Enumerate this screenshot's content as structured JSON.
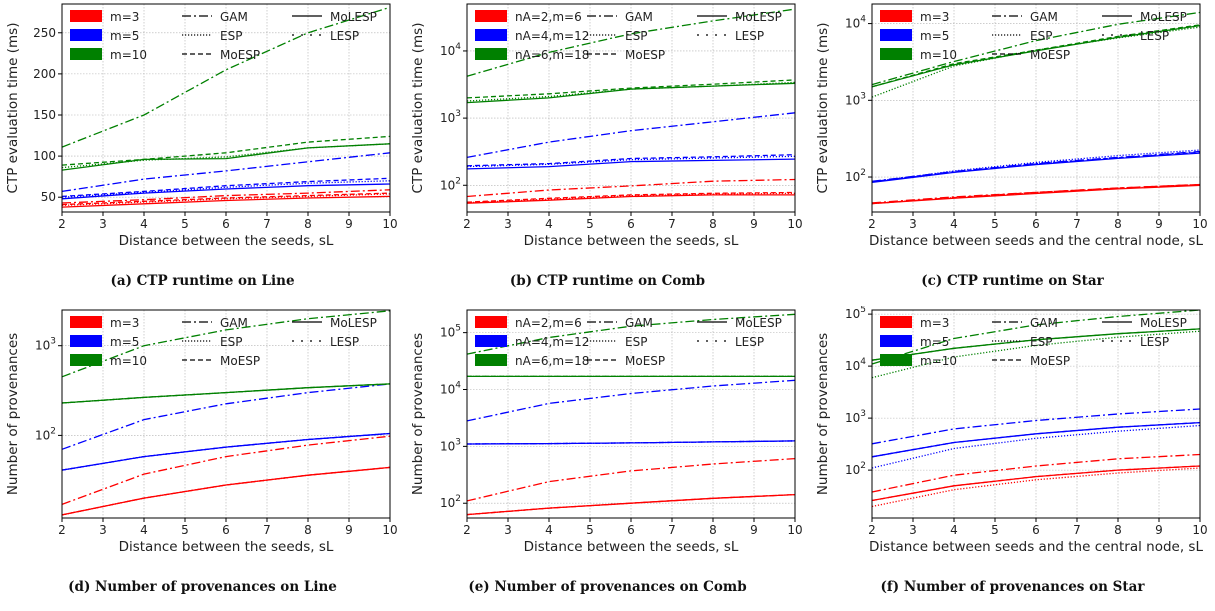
{
  "colors": {
    "red": "#ff0000",
    "blue": "#0000ff",
    "green": "#008000"
  },
  "style_names": [
    "GAM",
    "ESP",
    "MoESP",
    "MoLESP",
    "LESP"
  ],
  "chart_data": [
    {
      "id": "a",
      "type": "line",
      "caption": "(a) CTP runtime on Line",
      "xlabel": "Distance between the seeds, sL",
      "ylabel": "CTP evaluation time (ms)",
      "xscale": "linear",
      "yscale": "linear",
      "xlim": [
        2,
        10
      ],
      "ylim": [
        32,
        285
      ],
      "xticks": [
        2,
        3,
        4,
        5,
        6,
        7,
        8,
        9,
        10
      ],
      "yticks": [
        50,
        100,
        150,
        200,
        250
      ],
      "grid": true,
      "legend_position": "top-left",
      "legend_labels": [
        "m=3",
        "m=5",
        "m=10"
      ],
      "x": [
        2,
        4,
        6,
        8,
        10
      ],
      "series": [
        {
          "group": 0,
          "style": "GAM",
          "values": [
            43,
            47,
            52,
            55,
            59
          ]
        },
        {
          "group": 0,
          "style": "ESP",
          "values": [
            40,
            44,
            48,
            51,
            54
          ]
        },
        {
          "group": 0,
          "style": "MoESP",
          "values": [
            41,
            45,
            49,
            52,
            55
          ]
        },
        {
          "group": 0,
          "style": "MoLESP",
          "values": [
            38,
            42,
            46,
            49,
            51
          ]
        },
        {
          "group": 1,
          "style": "GAM",
          "values": [
            57,
            72,
            82,
            93,
            104
          ]
        },
        {
          "group": 1,
          "style": "ESP",
          "values": [
            50,
            56,
            62,
            67,
            70
          ]
        },
        {
          "group": 1,
          "style": "MoESP",
          "values": [
            51,
            57,
            64,
            69,
            73
          ]
        },
        {
          "group": 1,
          "style": "MoLESP",
          "values": [
            48,
            55,
            60,
            64,
            66
          ]
        },
        {
          "group": 2,
          "style": "GAM",
          "values": [
            111,
            150,
            205,
            250,
            281
          ]
        },
        {
          "group": 2,
          "style": "ESP",
          "values": [
            86,
            95,
            99,
            110,
            115
          ]
        },
        {
          "group": 2,
          "style": "MoESP",
          "values": [
            89,
            96,
            104,
            117,
            124
          ]
        },
        {
          "group": 2,
          "style": "MoLESP",
          "values": [
            83,
            96,
            97,
            110,
            115
          ]
        }
      ]
    },
    {
      "id": "b",
      "type": "line",
      "caption": "(b) CTP runtime on Comb",
      "xlabel": "Distance between the seeds, sL",
      "ylabel": "CTP evaluation time (ms)",
      "xscale": "linear",
      "yscale": "log",
      "xlim": [
        2,
        10
      ],
      "ylim": [
        40,
        50000
      ],
      "xticks": [
        2,
        3,
        4,
        5,
        6,
        7,
        8,
        9,
        10
      ],
      "yticks": [
        100,
        1000,
        10000
      ],
      "grid": true,
      "legend_position": "top",
      "legend_labels": [
        "nA=2,m=6",
        "nA=4,m=12",
        "nA=6,m=18"
      ],
      "x": [
        2,
        4,
        6,
        8,
        10
      ],
      "series": [
        {
          "group": 0,
          "style": "GAM",
          "values": [
            68,
            85,
            98,
            115,
            122
          ]
        },
        {
          "group": 0,
          "style": "ESP",
          "values": [
            55,
            62,
            70,
            74,
            76
          ]
        },
        {
          "group": 0,
          "style": "MoESP",
          "values": [
            56,
            64,
            72,
            76,
            78
          ]
        },
        {
          "group": 0,
          "style": "MoLESP",
          "values": [
            54,
            60,
            68,
            72,
            72
          ]
        },
        {
          "group": 1,
          "style": "GAM",
          "values": [
            260,
            440,
            650,
            880,
            1200
          ]
        },
        {
          "group": 1,
          "style": "ESP",
          "values": [
            190,
            205,
            240,
            255,
            270
          ]
        },
        {
          "group": 1,
          "style": "MoESP",
          "values": [
            195,
            210,
            250,
            265,
            285
          ]
        },
        {
          "group": 1,
          "style": "MoLESP",
          "values": [
            175,
            190,
            225,
            235,
            245
          ]
        },
        {
          "group": 2,
          "style": "GAM",
          "values": [
            4200,
            9500,
            18000,
            28000,
            42000
          ]
        },
        {
          "group": 2,
          "style": "ESP",
          "values": [
            1800,
            2100,
            2700,
            3000,
            3400
          ]
        },
        {
          "group": 2,
          "style": "MoESP",
          "values": [
            2000,
            2300,
            2800,
            3200,
            3700
          ]
        },
        {
          "group": 2,
          "style": "MoLESP",
          "values": [
            1700,
            2000,
            2700,
            3000,
            3300
          ]
        }
      ]
    },
    {
      "id": "c",
      "type": "line",
      "caption": "(c) CTP runtime on Star",
      "xlabel": "Distance between seeds and the central node, sL",
      "ylabel": "CTP evaluation time (ms)",
      "xscale": "linear",
      "yscale": "log",
      "xlim": [
        2,
        10
      ],
      "ylim": [
        35,
        18000
      ],
      "xticks": [
        2,
        3,
        4,
        5,
        6,
        7,
        8,
        9,
        10
      ],
      "yticks": [
        100,
        1000,
        10000
      ],
      "grid": true,
      "legend_position": "top",
      "legend_labels": [
        "m=3",
        "m=5",
        "m=10"
      ],
      "x": [
        2,
        4,
        6,
        8,
        10
      ],
      "series": [
        {
          "group": 0,
          "style": "GAM",
          "values": [
            46,
            55,
            63,
            72,
            80
          ]
        },
        {
          "group": 0,
          "style": "ESP",
          "values": [
            45,
            54,
            62,
            71,
            79
          ]
        },
        {
          "group": 0,
          "style": "MoESP",
          "values": [
            45,
            54,
            63,
            72,
            80
          ]
        },
        {
          "group": 0,
          "style": "MoLESP",
          "values": [
            45,
            53,
            61,
            70,
            78
          ]
        },
        {
          "group": 1,
          "style": "GAM",
          "values": [
            88,
            118,
            150,
            180,
            215
          ]
        },
        {
          "group": 1,
          "style": "ESP",
          "values": [
            86,
            120,
            155,
            190,
            225
          ]
        },
        {
          "group": 1,
          "style": "MoESP",
          "values": [
            87,
            116,
            148,
            178,
            210
          ]
        },
        {
          "group": 1,
          "style": "MoLESP",
          "values": [
            85,
            115,
            145,
            175,
            205
          ]
        },
        {
          "group": 2,
          "style": "GAM",
          "values": [
            1600,
            3200,
            6000,
            9800,
            14000
          ]
        },
        {
          "group": 2,
          "style": "ESP",
          "values": [
            1100,
            2800,
            4500,
            6500,
            9000
          ]
        },
        {
          "group": 2,
          "style": "MoESP",
          "values": [
            1500,
            3000,
            4500,
            6800,
            9600
          ]
        },
        {
          "group": 2,
          "style": "MoLESP",
          "values": [
            1500,
            2900,
            4400,
            6600,
            9400
          ]
        }
      ]
    },
    {
      "id": "d",
      "type": "line",
      "caption": "(d) Number of provenances on Line",
      "xlabel": "Distance between the seeds, sL",
      "ylabel": "Number of provenances",
      "xscale": "linear",
      "yscale": "log",
      "xlim": [
        2,
        10
      ],
      "ylim": [
        12,
        2500
      ],
      "xticks": [
        2,
        3,
        4,
        5,
        6,
        7,
        8,
        9,
        10
      ],
      "yticks": [
        100,
        1000
      ],
      "grid": true,
      "legend_position": "top-left",
      "legend_labels": [
        "m=3",
        "m=5",
        "m=10"
      ],
      "x": [
        2,
        4,
        6,
        8,
        10
      ],
      "series": [
        {
          "group": 0,
          "style": "GAM",
          "values": [
            17,
            37,
            58,
            78,
            98
          ]
        },
        {
          "group": 0,
          "style": "ESP",
          "values": [
            13,
            20,
            28,
            36,
            44
          ]
        },
        {
          "group": 0,
          "style": "MoESP",
          "values": [
            13,
            20,
            28,
            36,
            44
          ]
        },
        {
          "group": 0,
          "style": "MoLESP",
          "values": [
            13,
            20,
            28,
            36,
            44
          ]
        },
        {
          "group": 1,
          "style": "GAM",
          "values": [
            70,
            150,
            225,
            300,
            375
          ]
        },
        {
          "group": 1,
          "style": "ESP",
          "values": [
            41,
            58,
            74,
            90,
            105
          ]
        },
        {
          "group": 1,
          "style": "MoESP",
          "values": [
            41,
            58,
            74,
            90,
            105
          ]
        },
        {
          "group": 1,
          "style": "MoLESP",
          "values": [
            41,
            58,
            74,
            90,
            105
          ]
        },
        {
          "group": 2,
          "style": "GAM",
          "values": [
            450,
            1000,
            1500,
            2000,
            2450
          ]
        },
        {
          "group": 2,
          "style": "ESP",
          "values": [
            230,
            265,
            300,
            340,
            375
          ]
        },
        {
          "group": 2,
          "style": "MoESP",
          "values": [
            230,
            265,
            300,
            340,
            375
          ]
        },
        {
          "group": 2,
          "style": "MoLESP",
          "values": [
            230,
            265,
            300,
            340,
            375
          ]
        }
      ]
    },
    {
      "id": "e",
      "type": "line",
      "caption": "(e) Number of provenances on Comb",
      "xlabel": "Distance between the seeds, sL",
      "ylabel": "Number of provenances",
      "xscale": "linear",
      "yscale": "log",
      "xlim": [
        2,
        10
      ],
      "ylim": [
        55,
        250000
      ],
      "xticks": [
        2,
        3,
        4,
        5,
        6,
        7,
        8,
        9,
        10
      ],
      "yticks": [
        100,
        1000,
        10000,
        100000
      ],
      "grid": true,
      "legend_position": "top",
      "legend_labels": [
        "nA=2,m=6",
        "nA=4,m=12",
        "nA=6,m=18"
      ],
      "x": [
        2,
        4,
        6,
        8,
        10
      ],
      "series": [
        {
          "group": 0,
          "style": "GAM",
          "values": [
            110,
            240,
            370,
            490,
            610
          ]
        },
        {
          "group": 0,
          "style": "ESP",
          "values": [
            63,
            82,
            100,
            122,
            142
          ]
        },
        {
          "group": 0,
          "style": "MoESP",
          "values": [
            63,
            82,
            100,
            122,
            142
          ]
        },
        {
          "group": 0,
          "style": "MoLESP",
          "values": [
            63,
            82,
            100,
            122,
            142
          ]
        },
        {
          "group": 1,
          "style": "GAM",
          "values": [
            2800,
            5700,
            8500,
            11500,
            14500
          ]
        },
        {
          "group": 1,
          "style": "ESP",
          "values": [
            1100,
            1120,
            1150,
            1200,
            1250
          ]
        },
        {
          "group": 1,
          "style": "MoESP",
          "values": [
            1100,
            1120,
            1150,
            1200,
            1250
          ]
        },
        {
          "group": 1,
          "style": "MoLESP",
          "values": [
            1100,
            1120,
            1150,
            1200,
            1250
          ]
        },
        {
          "group": 2,
          "style": "GAM",
          "values": [
            42000,
            82000,
            130000,
            170000,
            210000
          ]
        },
        {
          "group": 2,
          "style": "ESP",
          "values": [
            17000,
            17000,
            17000,
            17000,
            17000
          ]
        },
        {
          "group": 2,
          "style": "MoESP",
          "values": [
            17000,
            17000,
            17000,
            17000,
            17000
          ]
        },
        {
          "group": 2,
          "style": "MoLESP",
          "values": [
            17000,
            17000,
            17000,
            17000,
            17000
          ]
        }
      ]
    },
    {
      "id": "f",
      "type": "line",
      "caption": "(f) Number of provenances on Star",
      "xlabel": "Distance between seeds and the central node, sL",
      "ylabel": "Number of provenances",
      "xscale": "linear",
      "yscale": "log",
      "xlim": [
        2,
        10
      ],
      "ylim": [
        12,
        120000
      ],
      "xticks": [
        2,
        3,
        4,
        5,
        6,
        7,
        8,
        9,
        10
      ],
      "yticks": [
        100,
        1000,
        10000,
        100000
      ],
      "grid": true,
      "legend_position": "top",
      "legend_labels": [
        "m=3",
        "m=5",
        "m=10"
      ],
      "x": [
        2,
        4,
        6,
        8,
        10
      ],
      "series": [
        {
          "group": 0,
          "style": "GAM",
          "values": [
            38,
            80,
            120,
            165,
            200
          ]
        },
        {
          "group": 0,
          "style": "ESP",
          "values": [
            20,
            42,
            65,
            88,
            110
          ]
        },
        {
          "group": 0,
          "style": "MoESP",
          "values": [
            26,
            50,
            75,
            100,
            120
          ]
        },
        {
          "group": 0,
          "style": "MoLESP",
          "values": [
            26,
            50,
            75,
            100,
            120
          ]
        },
        {
          "group": 1,
          "style": "GAM",
          "values": [
            320,
            620,
            900,
            1200,
            1500
          ]
        },
        {
          "group": 1,
          "style": "ESP",
          "values": [
            110,
            260,
            410,
            560,
            720
          ]
        },
        {
          "group": 1,
          "style": "MoESP",
          "values": [
            180,
            340,
            500,
            670,
            820
          ]
        },
        {
          "group": 1,
          "style": "MoLESP",
          "values": [
            180,
            340,
            500,
            670,
            820
          ]
        },
        {
          "group": 2,
          "style": "GAM",
          "values": [
            11000,
            34000,
            62000,
            90000,
            120000
          ]
        },
        {
          "group": 2,
          "style": "ESP",
          "values": [
            6000,
            15000,
            25000,
            36000,
            47000
          ]
        },
        {
          "group": 2,
          "style": "MoESP",
          "values": [
            13000,
            22000,
            32000,
            42000,
            52000
          ]
        },
        {
          "group": 2,
          "style": "MoLESP",
          "values": [
            13000,
            22000,
            32000,
            42000,
            52000
          ]
        }
      ]
    }
  ]
}
